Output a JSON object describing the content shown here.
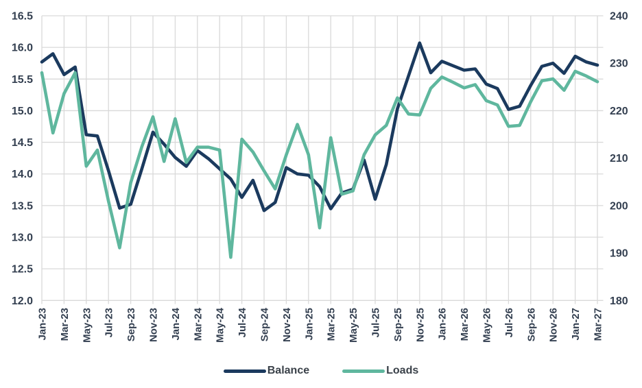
{
  "chart_data": {
    "type": "line",
    "title": "",
    "x": [
      "Jan-23",
      "Feb-23",
      "Mar-23",
      "Apr-23",
      "May-23",
      "Jun-23",
      "Jul-23",
      "Aug-23",
      "Sep-23",
      "Oct-23",
      "Nov-23",
      "Dec-23",
      "Jan-24",
      "Feb-24",
      "Mar-24",
      "Apr-24",
      "May-24",
      "Jun-24",
      "Jul-24",
      "Aug-24",
      "Sep-24",
      "Oct-24",
      "Nov-24",
      "Dec-24",
      "Jan-25",
      "Feb-25",
      "Mar-25",
      "Apr-25",
      "May-25",
      "Jun-25",
      "Jul-25",
      "Aug-25",
      "Sep-25",
      "Oct-25",
      "Nov-25",
      "Dec-25",
      "Jan-26",
      "Feb-26",
      "Mar-26",
      "Apr-26",
      "May-26",
      "Jun-26",
      "Jul-26",
      "Aug-26",
      "Sep-26",
      "Oct-26",
      "Nov-26",
      "Dec-26",
      "Jan-27",
      "Feb-27",
      "Mar-27"
    ],
    "x_tick_labels": [
      "Jan-23",
      "Mar-23",
      "May-23",
      "Jul-23",
      "Sep-23",
      "Nov-23",
      "Jan-24",
      "Mar-24",
      "May-24",
      "Jul-24",
      "Sep-24",
      "Nov-24",
      "Jan-25",
      "Mar-25",
      "May-25",
      "Jul-25",
      "Sep-25",
      "Nov-25",
      "Jan-26",
      "Mar-26",
      "May-26",
      "Jul-26",
      "Sep-26",
      "Nov-26",
      "Jan-27",
      "Mar-27"
    ],
    "x_tick_every": 2,
    "series": [
      {
        "name": "Balance",
        "axis": "left",
        "color": "#1b3a5e",
        "values": [
          15.77,
          15.9,
          15.57,
          15.69,
          14.62,
          14.6,
          14.05,
          13.46,
          13.52,
          14.08,
          14.66,
          14.47,
          14.26,
          14.12,
          14.37,
          14.24,
          14.08,
          13.92,
          13.63,
          13.9,
          13.42,
          13.55,
          14.1,
          14.0,
          13.98,
          13.8,
          13.45,
          13.7,
          13.76,
          14.22,
          13.6,
          14.15,
          15.03,
          15.55,
          16.07,
          15.6,
          15.78,
          15.71,
          15.64,
          15.66,
          15.42,
          15.35,
          15.02,
          15.07,
          15.4,
          15.7,
          15.75,
          15.59,
          15.86,
          15.77,
          15.72
        ]
      },
      {
        "name": "Loads",
        "axis": "right",
        "color": "#5fb79e",
        "values": [
          228.0,
          215.3,
          223.6,
          228.0,
          208.3,
          211.7,
          200.9,
          191.1,
          204.8,
          212.4,
          218.7,
          209.3,
          218.3,
          209.1,
          212.3,
          212.3,
          211.7,
          189.1,
          214.0,
          211.3,
          207.3,
          203.5,
          210.7,
          217.1,
          210.7,
          195.3,
          214.3,
          202.4,
          203.1,
          210.7,
          214.9,
          216.9,
          222.7,
          219.3,
          219.1,
          224.7,
          227.1,
          226.0,
          224.8,
          225.5,
          222.1,
          221.2,
          216.7,
          216.9,
          221.9,
          226.3,
          226.7,
          224.3,
          228.3,
          227.3,
          226.1
        ]
      }
    ],
    "left_axis": {
      "min": 12.0,
      "max": 16.5,
      "step": 0.5,
      "ticks": [
        "16.5",
        "16.0",
        "15.5",
        "15.0",
        "14.5",
        "14.0",
        "13.5",
        "13.0",
        "12.5",
        "12.0"
      ]
    },
    "right_axis": {
      "min": 180,
      "max": 240,
      "step": 10,
      "ticks": [
        "240",
        "230",
        "220",
        "210",
        "200",
        "190",
        "180"
      ]
    },
    "grid": true,
    "legend_position": "bottom"
  },
  "legend": {
    "items": [
      {
        "label": "Balance",
        "color": "#1b3a5e"
      },
      {
        "label": "Loads",
        "color": "#5fb79e"
      }
    ]
  },
  "styles": {
    "grid_color": "#d9d9d9",
    "tick_label_color": "#333f50",
    "background": "#ffffff"
  }
}
